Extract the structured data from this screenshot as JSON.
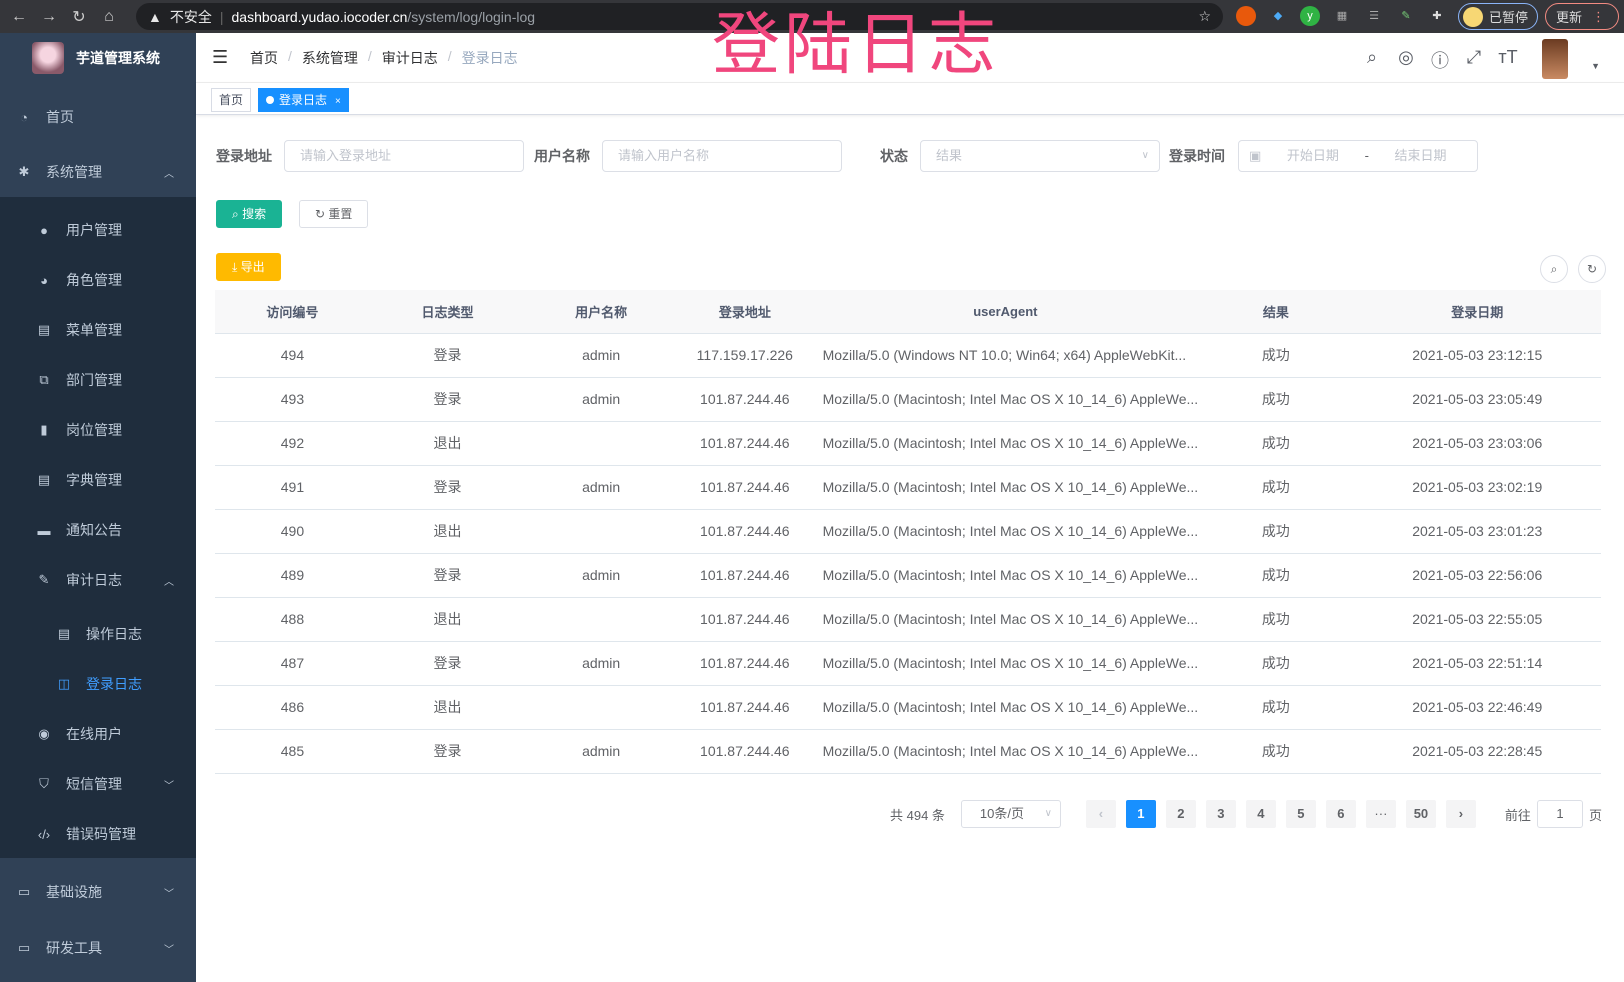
{
  "browser": {
    "insecure": "不安全",
    "host": "dashboard.yudao.iocoder.cn",
    "path": "/system/log/login-log",
    "paused": "已暂停",
    "update": "更新"
  },
  "overlay_title": "登陆日志",
  "app": {
    "name": "芋道管理系统"
  },
  "sidebar": {
    "items": [
      {
        "label": "首页",
        "icon": "dashboard-icon"
      },
      {
        "label": "系统管理",
        "icon": "gear-icon"
      },
      {
        "label": "用户管理",
        "icon": "user-icon"
      },
      {
        "label": "角色管理",
        "icon": "peoples-icon"
      },
      {
        "label": "菜单管理",
        "icon": "tree-table-icon"
      },
      {
        "label": "部门管理",
        "icon": "tree-icon"
      },
      {
        "label": "岗位管理",
        "icon": "post-icon"
      },
      {
        "label": "字典管理",
        "icon": "dict-icon"
      },
      {
        "label": "通知公告",
        "icon": "message-icon"
      },
      {
        "label": "审计日志",
        "icon": "log-icon"
      },
      {
        "label": "操作日志",
        "icon": "form-icon"
      },
      {
        "label": "登录日志",
        "icon": "logininfor-icon"
      },
      {
        "label": "在线用户",
        "icon": "online-icon"
      },
      {
        "label": "短信管理",
        "icon": "validCode-icon"
      },
      {
        "label": "错误码管理",
        "icon": "code-icon"
      },
      {
        "label": "基础设施",
        "icon": "monitor-icon"
      },
      {
        "label": "研发工具",
        "icon": "tool-icon"
      }
    ]
  },
  "breadcrumb": [
    "首页",
    "系统管理",
    "审计日志",
    "登录日志"
  ],
  "tags": [
    {
      "label": "首页"
    },
    {
      "label": "登录日志"
    }
  ],
  "search": {
    "addr_label": "登录地址",
    "addr_placeholder": "请输入登录地址",
    "user_label": "用户名称",
    "user_placeholder": "请输入用户名称",
    "status_label": "状态",
    "status_placeholder": "结果",
    "time_label": "登录时间",
    "start_placeholder": "开始日期",
    "range_sep": "-",
    "end_placeholder": "结束日期",
    "search_btn": "搜索",
    "reset_btn": "重置",
    "export_btn": "导出"
  },
  "table": {
    "headers": [
      "访问编号",
      "日志类型",
      "用户名称",
      "登录地址",
      "userAgent",
      "结果",
      "登录日期"
    ],
    "rows": [
      [
        "494",
        "登录",
        "admin",
        "117.159.17.226",
        "Mozilla/5.0 (Windows NT 10.0; Win64; x64) AppleWebKit...",
        "成功",
        "2021-05-03 23:12:15"
      ],
      [
        "493",
        "登录",
        "admin",
        "101.87.244.46",
        "Mozilla/5.0 (Macintosh; Intel Mac OS X 10_14_6) AppleWe...",
        "成功",
        "2021-05-03 23:05:49"
      ],
      [
        "492",
        "退出",
        "",
        "101.87.244.46",
        "Mozilla/5.0 (Macintosh; Intel Mac OS X 10_14_6) AppleWe...",
        "成功",
        "2021-05-03 23:03:06"
      ],
      [
        "491",
        "登录",
        "admin",
        "101.87.244.46",
        "Mozilla/5.0 (Macintosh; Intel Mac OS X 10_14_6) AppleWe...",
        "成功",
        "2021-05-03 23:02:19"
      ],
      [
        "490",
        "退出",
        "",
        "101.87.244.46",
        "Mozilla/5.0 (Macintosh; Intel Mac OS X 10_14_6) AppleWe...",
        "成功",
        "2021-05-03 23:01:23"
      ],
      [
        "489",
        "登录",
        "admin",
        "101.87.244.46",
        "Mozilla/5.0 (Macintosh; Intel Mac OS X 10_14_6) AppleWe...",
        "成功",
        "2021-05-03 22:56:06"
      ],
      [
        "488",
        "退出",
        "",
        "101.87.244.46",
        "Mozilla/5.0 (Macintosh; Intel Mac OS X 10_14_6) AppleWe...",
        "成功",
        "2021-05-03 22:55:05"
      ],
      [
        "487",
        "登录",
        "admin",
        "101.87.244.46",
        "Mozilla/5.0 (Macintosh; Intel Mac OS X 10_14_6) AppleWe...",
        "成功",
        "2021-05-03 22:51:14"
      ],
      [
        "486",
        "退出",
        "",
        "101.87.244.46",
        "Mozilla/5.0 (Macintosh; Intel Mac OS X 10_14_6) AppleWe...",
        "成功",
        "2021-05-03 22:46:49"
      ],
      [
        "485",
        "登录",
        "admin",
        "101.87.244.46",
        "Mozilla/5.0 (Macintosh; Intel Mac OS X 10_14_6) AppleWe...",
        "成功",
        "2021-05-03 22:28:45"
      ]
    ]
  },
  "pagination": {
    "total": "共 494 条",
    "page_size": "10条/页",
    "pages": [
      "1",
      "2",
      "3",
      "4",
      "5",
      "6",
      "···",
      "50"
    ],
    "current": "1",
    "goto_label": "前往",
    "goto_value": "1",
    "goto_suffix": "页"
  },
  "colors": {
    "sidebar": "#304156",
    "submenu": "#1f2d3d",
    "accent": "#1890ff",
    "search": "#1ab394",
    "export": "#ffba00",
    "overlay": "#f0467d"
  }
}
